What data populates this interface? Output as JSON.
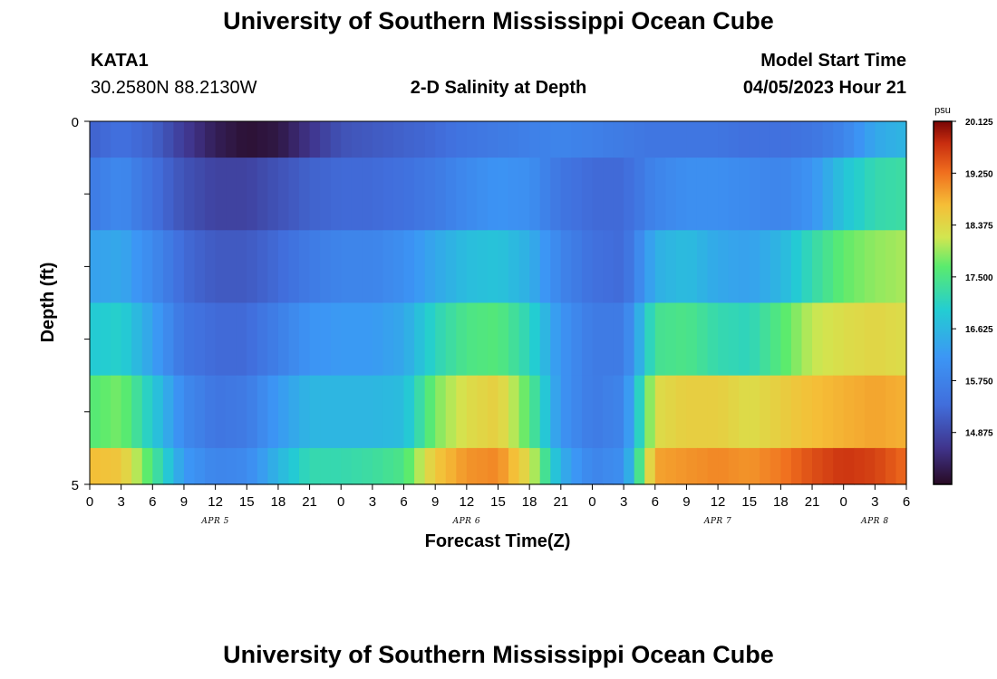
{
  "header": {
    "title": "University of Southern Mississippi Ocean Cube",
    "station": "KATA1",
    "coords": "30.2580N  88.2130W",
    "plot_title": "2-D Salinity at Depth",
    "model_label": "Model Start Time",
    "model_time": "04/05/2023 Hour 21"
  },
  "footer": {
    "title": "University of Southern Mississippi Ocean Cube"
  },
  "chart_data": {
    "type": "heatmap",
    "title": "2-D Salinity at Depth",
    "xlabel": "Forecast Time(Z)",
    "ylabel": "Depth (ft)",
    "x_tick_labels": [
      "0",
      "3",
      "6",
      "9",
      "12",
      "15",
      "18",
      "21",
      "0",
      "3",
      "6",
      "9",
      "12",
      "15",
      "18",
      "21",
      "0",
      "3",
      "6",
      "9",
      "12",
      "15",
      "18",
      "21",
      "0",
      "3",
      "6"
    ],
    "date_labels": [
      {
        "label": "APR 5",
        "hour": 12
      },
      {
        "label": "APR 6",
        "hour": 36
      },
      {
        "label": "APR 7",
        "hour": 60
      },
      {
        "label": "APR 8",
        "hour": 75
      }
    ],
    "x_range_hours": [
      0,
      78
    ],
    "y_range_ft": [
      0,
      5
    ],
    "y_tick_labels": [
      "0",
      "5"
    ],
    "colorbar": {
      "unit": "psu",
      "min": 14.0,
      "max": 20.125,
      "ticks": [
        "14.875",
        "15.750",
        "16.625",
        "17.500",
        "18.375",
        "19.250",
        "20.125"
      ]
    },
    "depth_rows": [
      0.25,
      1.0,
      2.0,
      3.0,
      4.0,
      4.75
    ],
    "row_bounds_ft": [
      0,
      0.5,
      1.5,
      2.5,
      3.5,
      4.5,
      5.0
    ],
    "control_hours": [
      0,
      3,
      6,
      9,
      12,
      15,
      18,
      21,
      24,
      27,
      30,
      33,
      36,
      39,
      42,
      45,
      48,
      51,
      54,
      57,
      60,
      63,
      66,
      69,
      72,
      75,
      78
    ],
    "salinity_rows": [
      [
        15.2,
        15.4,
        15.2,
        14.7,
        14.3,
        14.1,
        14.2,
        14.6,
        15.0,
        15.1,
        15.2,
        15.3,
        15.5,
        15.6,
        15.7,
        15.8,
        15.7,
        15.6,
        15.5,
        15.5,
        15.5,
        15.4,
        15.4,
        15.5,
        15.8,
        16.4,
        16.6
      ],
      [
        15.6,
        15.9,
        15.4,
        15.0,
        14.8,
        14.8,
        15.0,
        15.2,
        15.3,
        15.3,
        15.4,
        15.6,
        15.9,
        16.1,
        16.0,
        15.5,
        15.3,
        15.3,
        15.8,
        16.0,
        16.0,
        15.9,
        15.8,
        16.1,
        16.8,
        17.2,
        17.3
      ],
      [
        16.3,
        16.4,
        15.9,
        15.3,
        15.1,
        15.1,
        15.3,
        15.6,
        15.8,
        15.8,
        16.0,
        16.4,
        16.7,
        16.8,
        16.5,
        15.8,
        15.4,
        15.3,
        16.5,
        16.7,
        16.4,
        16.3,
        16.6,
        17.2,
        17.7,
        17.9,
        18.0
      ],
      [
        16.9,
        17.0,
        16.3,
        15.5,
        15.3,
        15.3,
        15.7,
        16.1,
        16.2,
        16.2,
        16.4,
        17.1,
        17.5,
        17.6,
        17.1,
        16.1,
        15.6,
        15.6,
        17.4,
        17.5,
        17.2,
        17.1,
        17.6,
        18.1,
        18.3,
        18.4,
        18.3
      ],
      [
        17.6,
        17.8,
        16.9,
        15.9,
        15.5,
        15.6,
        16.2,
        16.6,
        16.6,
        16.6,
        16.7,
        17.8,
        18.3,
        18.5,
        17.6,
        16.1,
        15.6,
        15.8,
        18.3,
        18.5,
        18.5,
        18.3,
        18.5,
        18.7,
        18.8,
        18.9,
        18.8
      ],
      [
        18.7,
        18.6,
        17.5,
        16.2,
        15.8,
        15.9,
        16.6,
        17.2,
        17.2,
        17.3,
        17.5,
        18.6,
        19.0,
        19.1,
        18.3,
        16.5,
        15.8,
        16.0,
        18.9,
        19.0,
        19.1,
        19.0,
        19.2,
        19.5,
        19.7,
        19.6,
        19.3
      ]
    ]
  }
}
